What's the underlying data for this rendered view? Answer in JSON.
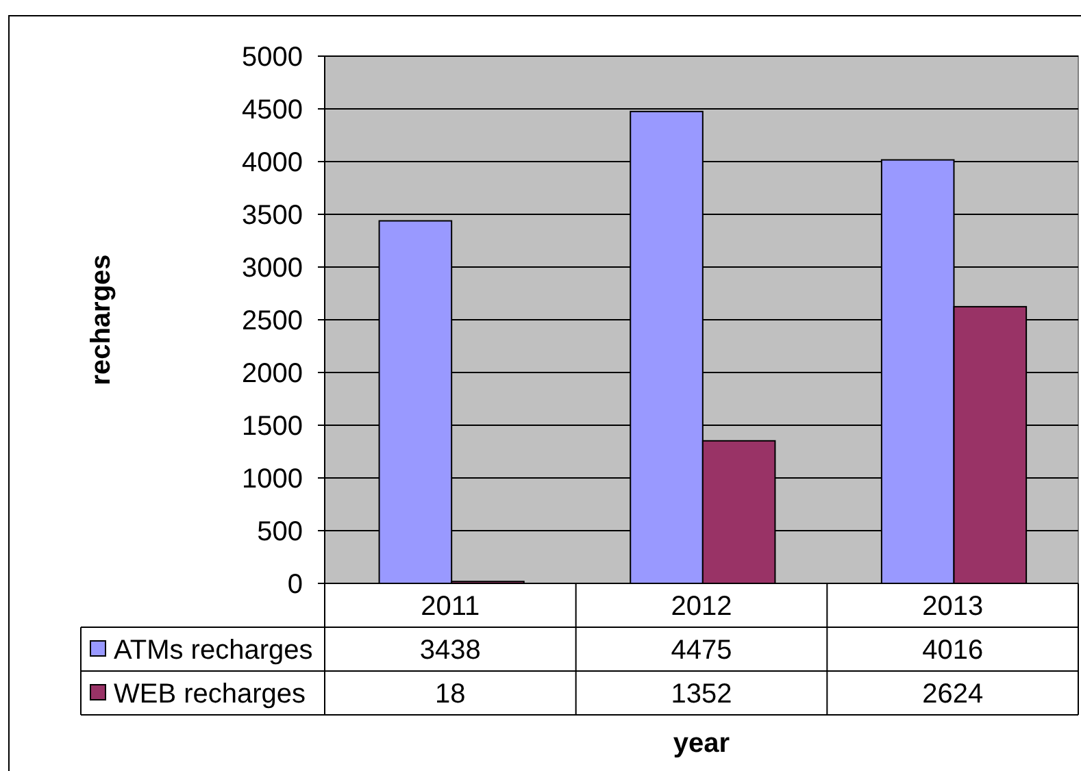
{
  "chart_data": {
    "type": "bar",
    "xlabel": "year",
    "ylabel": "recharges",
    "categories": [
      "2011",
      "2012",
      "2013"
    ],
    "series": [
      {
        "name": "ATMs recharges",
        "color": "#9999ff",
        "values": [
          3438,
          4475,
          4016
        ]
      },
      {
        "name": "WEB recharges",
        "color": "#993366",
        "values": [
          18,
          1352,
          2624
        ]
      }
    ],
    "ylim": [
      0,
      5000
    ],
    "yticks": [
      0,
      500,
      1000,
      1500,
      2000,
      2500,
      3000,
      3500,
      4000,
      4500,
      5000
    ],
    "grid": "y",
    "data_labels": true,
    "legend": "bottom"
  }
}
